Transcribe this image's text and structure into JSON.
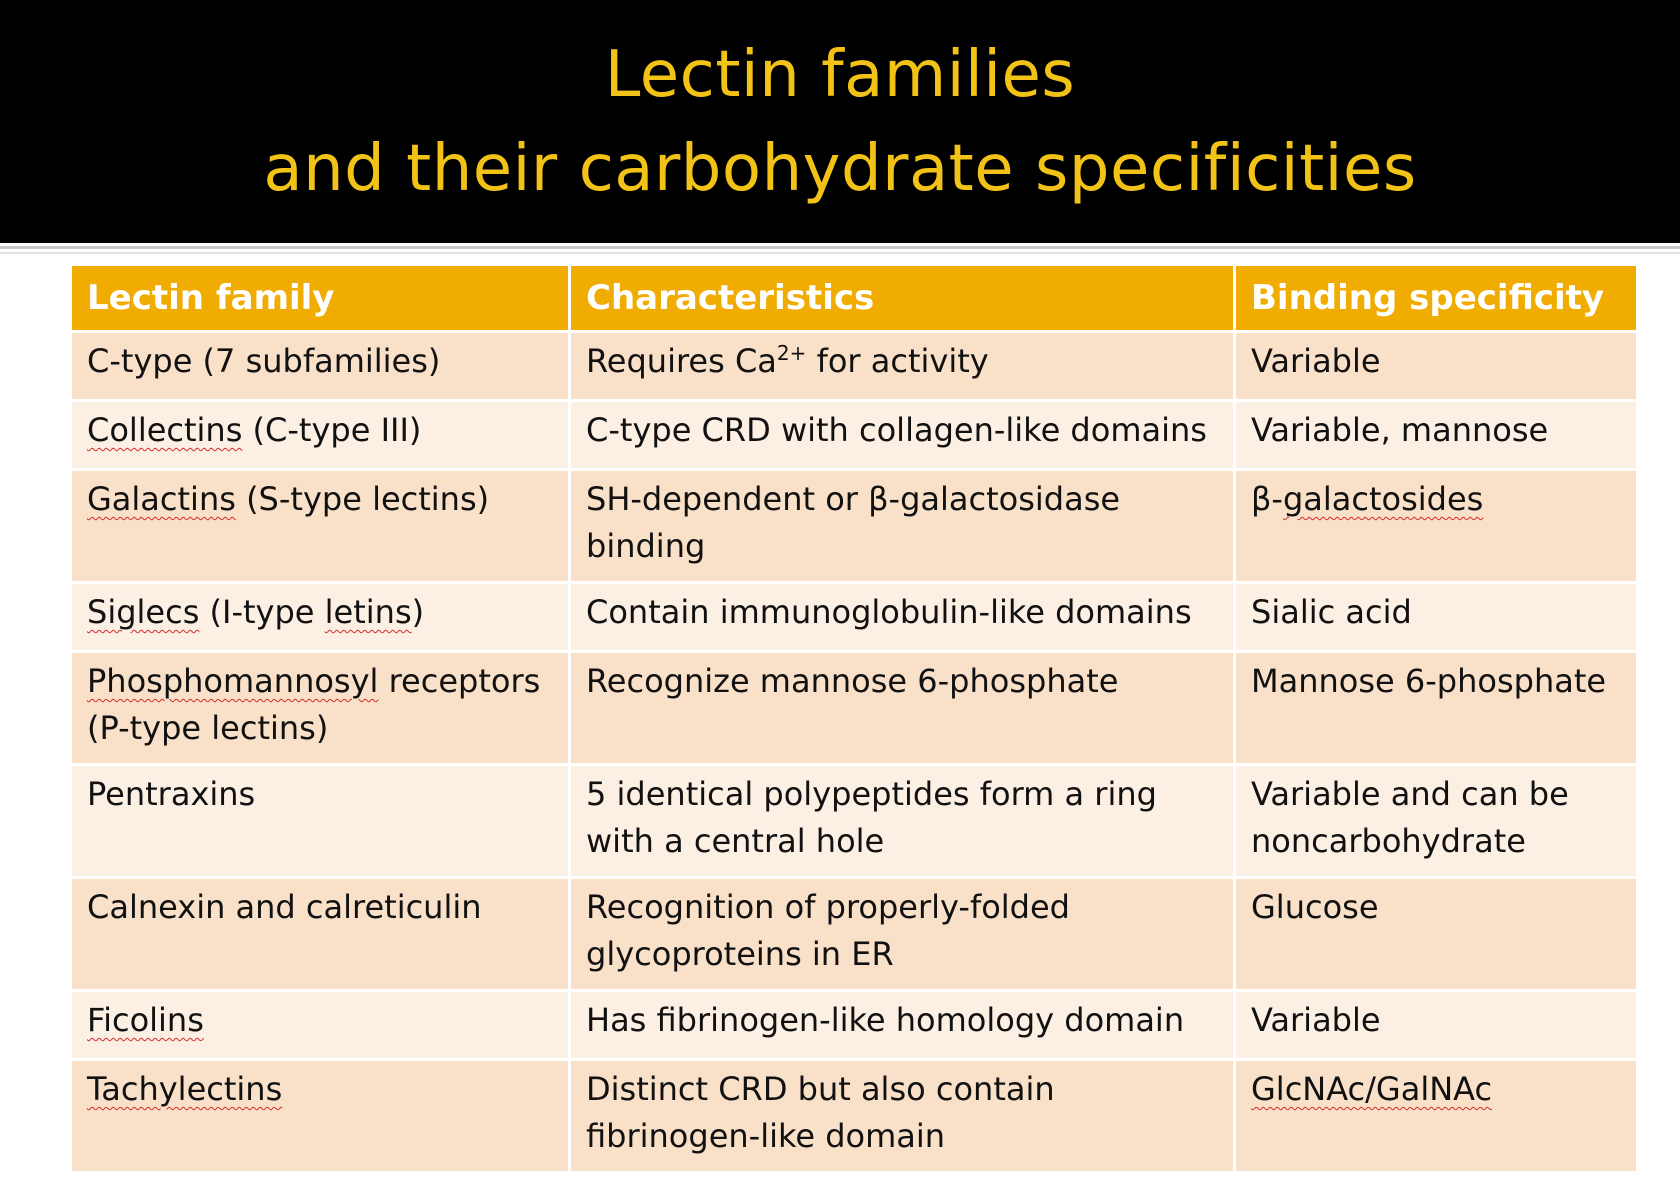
{
  "title": {
    "line1": "Lectin families",
    "line2": "and their carbohydrate specificities"
  },
  "colors": {
    "title_bg": "#000000",
    "title_text": "#F2C316",
    "header_bg": "#F0AC00",
    "header_text": "#FFFFFF",
    "row_dark": "#F9E0C8",
    "row_light": "#FCEFE4",
    "spellcheck_underline": "#D62A2A"
  },
  "table": {
    "headers": [
      "Lectin family",
      "Characteristics",
      "Binding specificity"
    ],
    "rows": [
      {
        "family": {
          "main": "C-type (7 subfamilies)"
        },
        "characteristics": {
          "pre": "Requires Ca",
          "sup": "2+",
          "post": " for activity"
        },
        "binding": {
          "main": "Variable"
        }
      },
      {
        "family": {
          "underlined": "Collectins",
          "rest": " (C-type III)"
        },
        "characteristics": {
          "main": "C-type CRD with collagen-like domains"
        },
        "binding": {
          "main": "Variable, mannose"
        }
      },
      {
        "family": {
          "underlined": "Galactins",
          "rest": " (S-type lectins)"
        },
        "characteristics": {
          "main": "SH-dependent or β-galactosidase binding"
        },
        "binding": {
          "pre": "β-",
          "underlined": "galactosides"
        }
      },
      {
        "family": {
          "underlined": "Siglecs",
          "mid": " (I-type ",
          "underlined2": "letins",
          "rest": ")"
        },
        "characteristics": {
          "main": "Contain immunoglobulin-like domains"
        },
        "binding": {
          "main": "Sialic acid"
        }
      },
      {
        "family": {
          "underlined": "Phosphomannosyl",
          "rest": " receptors (P-type lectins)"
        },
        "characteristics": {
          "main": "Recognize mannose 6-phosphate"
        },
        "binding": {
          "main": "Mannose 6-phosphate"
        }
      },
      {
        "family": {
          "main": "Pentraxins"
        },
        "characteristics": {
          "main": "5 identical polypeptides form a ring with a central hole"
        },
        "binding": {
          "main": "Variable and can be noncarbohydrate"
        }
      },
      {
        "family": {
          "main": "Calnexin and calreticulin"
        },
        "characteristics": {
          "main": "Recognition of properly-folded glycoproteins in ER"
        },
        "binding": {
          "main": "Glucose"
        }
      },
      {
        "family": {
          "underlined": "Ficolins"
        },
        "characteristics": {
          "main": "Has fibrinogen-like homology domain"
        },
        "binding": {
          "main": "Variable"
        }
      },
      {
        "family": {
          "underlined": "Tachylectins"
        },
        "characteristics": {
          "main": "Distinct CRD but also contain fibrinogen-like domain"
        },
        "binding": {
          "underlined": "GlcNAc/GalNAc"
        }
      }
    ]
  }
}
